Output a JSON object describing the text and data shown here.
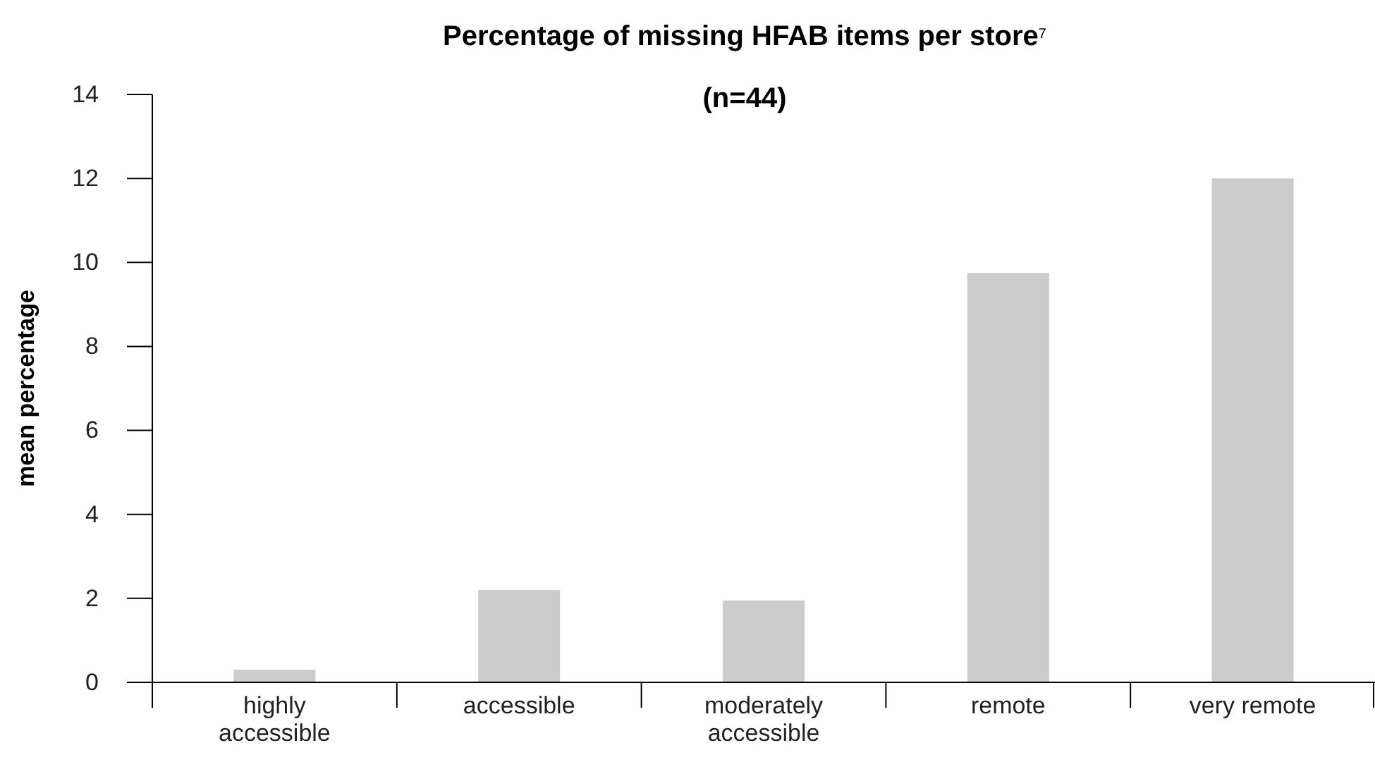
{
  "chart_data": {
    "type": "bar",
    "title": "Percentage of missing HFAB items per store$^{7}$",
    "subtitle": "(n=44)",
    "ylabel": "mean percentage",
    "categories": [
      "highly accessible",
      "accessible",
      "moderately accessible",
      "remote",
      "very remote"
    ],
    "values": [
      0.3,
      2.2,
      1.95,
      9.75,
      12.0
    ],
    "color": "#cccccc",
    "ylim": [
      0,
      14
    ],
    "yticks": [
      0,
      2,
      4,
      6,
      8,
      10,
      12,
      14
    ],
    "grid": false
  }
}
